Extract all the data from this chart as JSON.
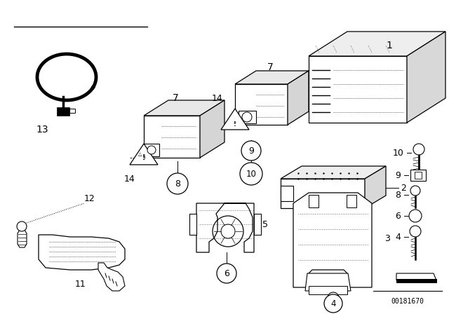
{
  "background_color": "#ffffff",
  "image_number": "00181670",
  "line_color": "#000000",
  "fig_width": 6.4,
  "fig_height": 4.48,
  "dpi": 100
}
